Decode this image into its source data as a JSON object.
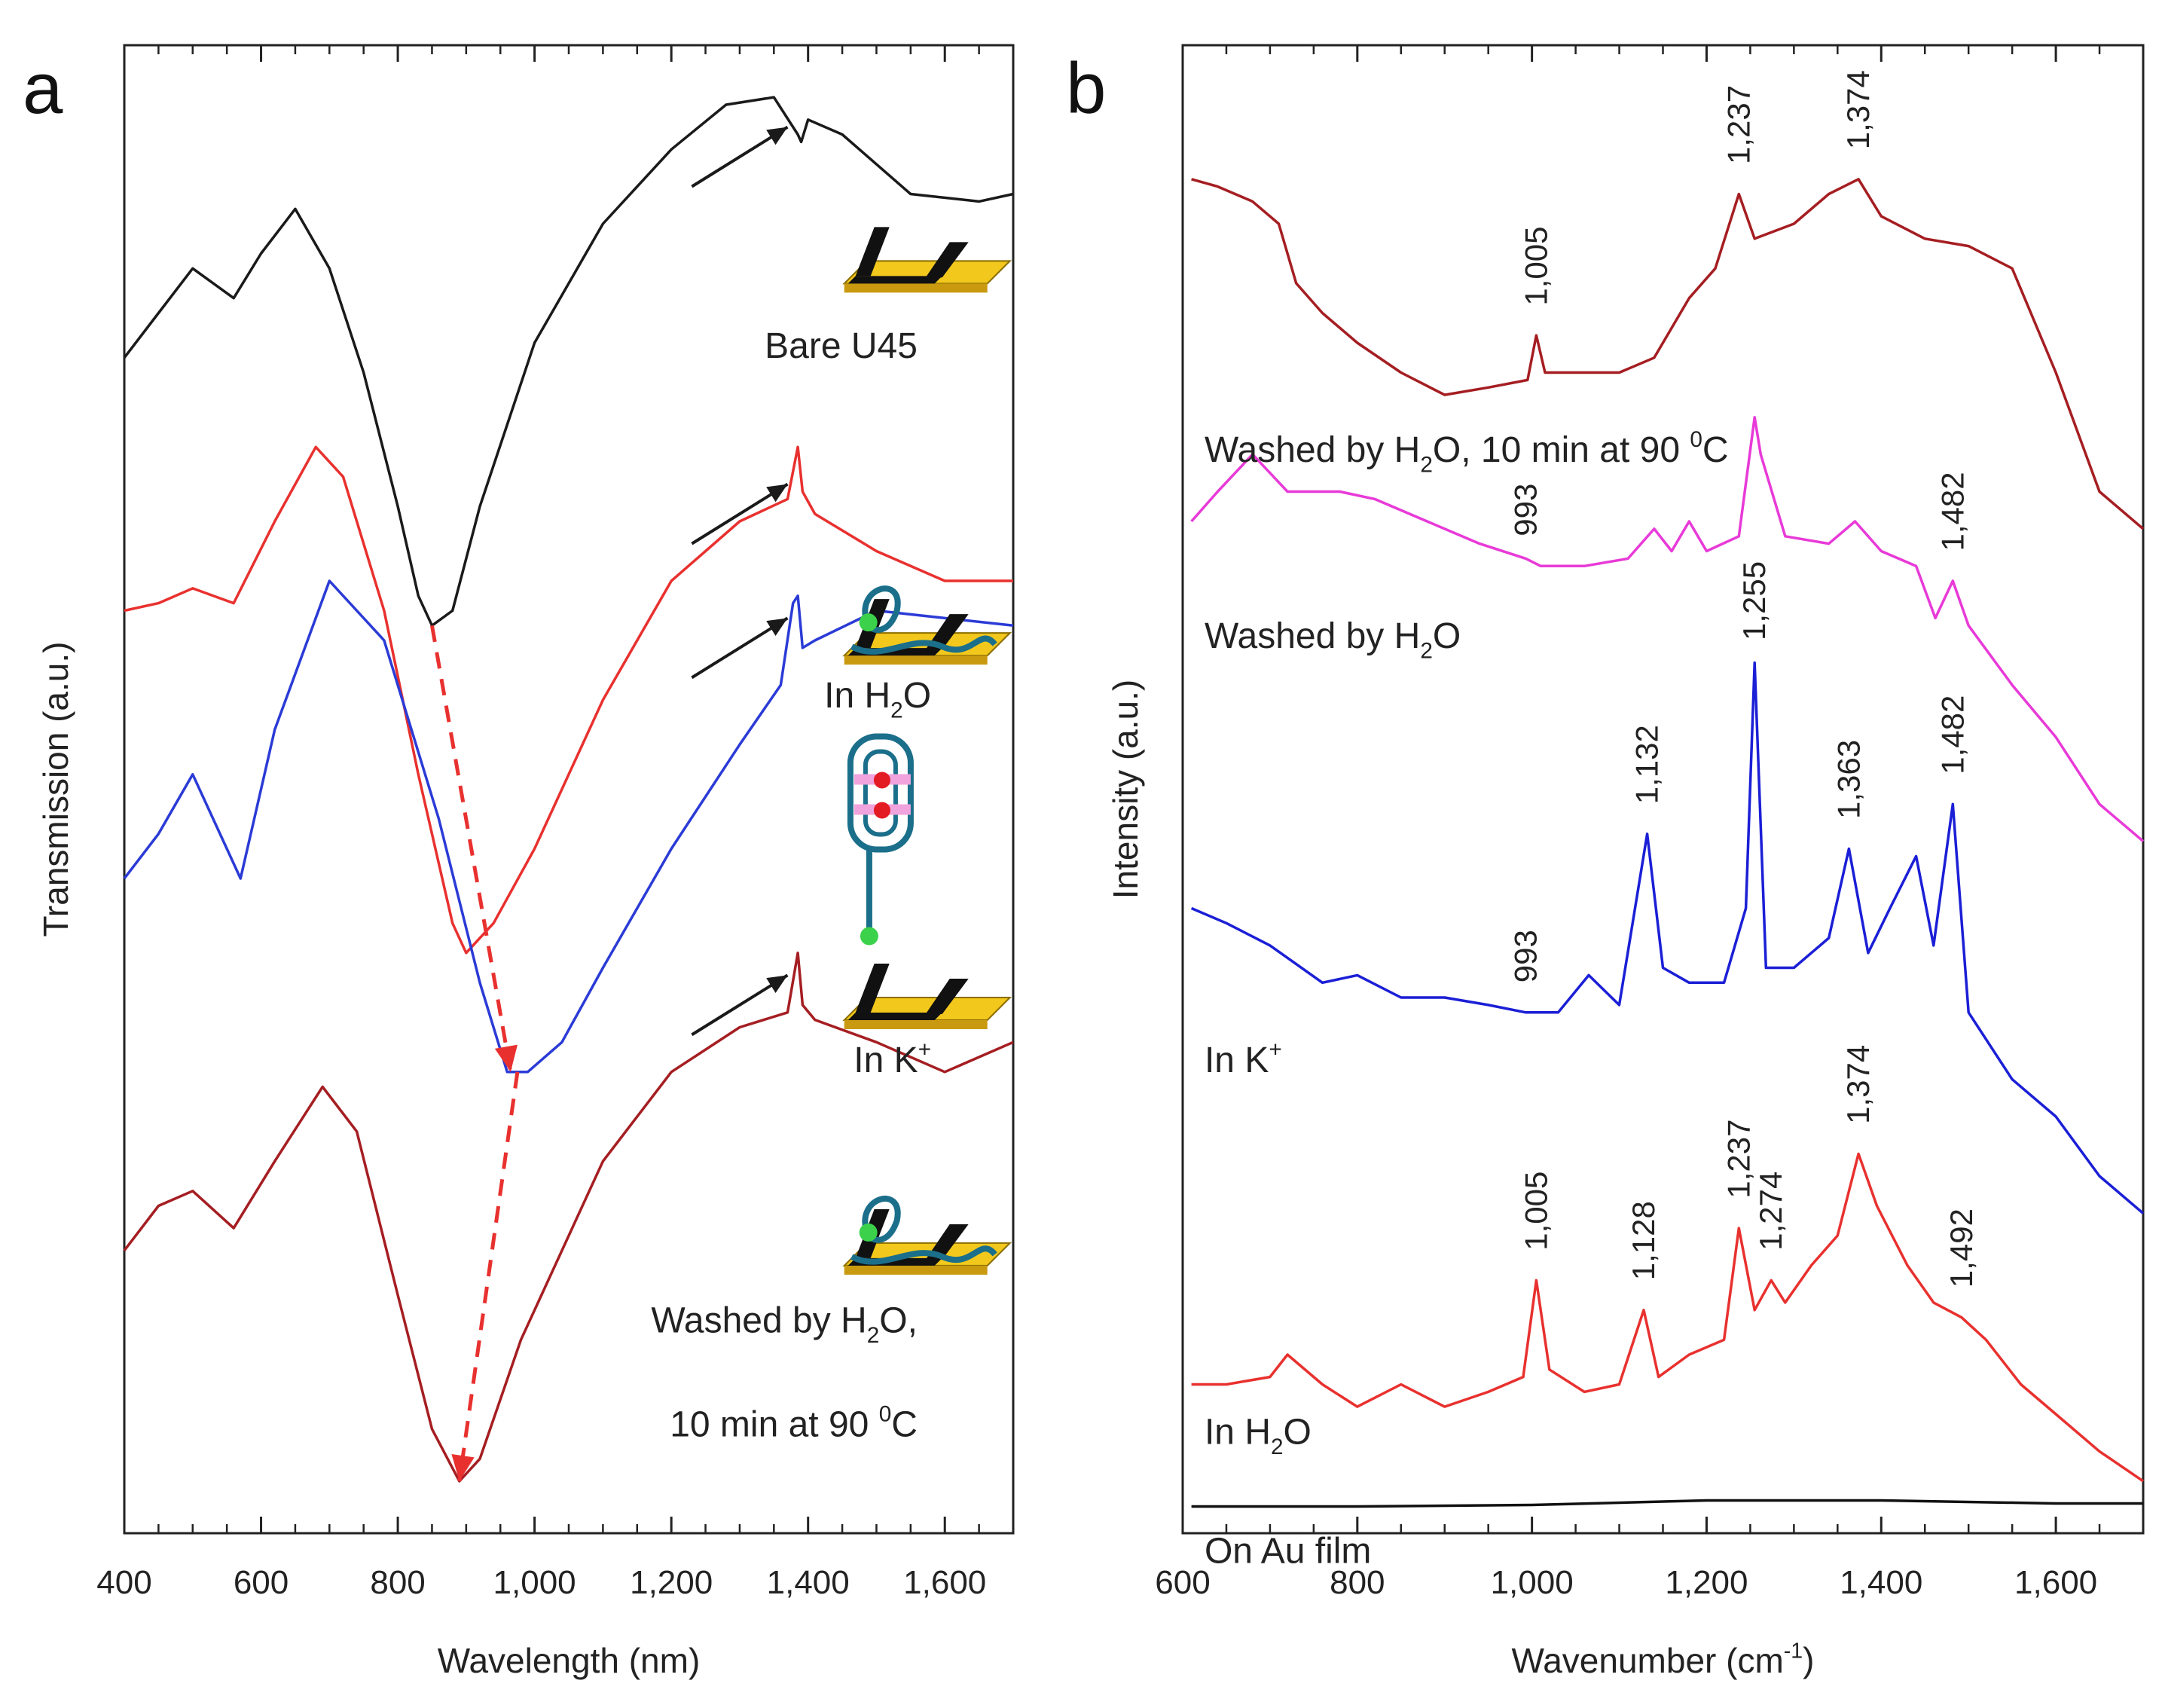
{
  "chart_data": [
    {
      "panel": "a",
      "type": "line",
      "xlabel": "Wavelength (nm)",
      "ylabel": "Transmission (a.u.)",
      "xlim": [
        400,
        1700
      ],
      "xticks": [
        400,
        600,
        800,
        1000,
        1200,
        1400,
        1600
      ],
      "xtick_labels": [
        "400",
        "600",
        "800",
        "1,000",
        "1,200",
        "1,400",
        "1,600"
      ],
      "ylim": [
        0,
        10
      ],
      "grid": false,
      "series": [
        {
          "name": "Bare U45",
          "color": "#1a1a1a",
          "x": [
            400,
            450,
            500,
            560,
            600,
            650,
            700,
            750,
            800,
            830,
            850,
            880,
            920,
            1000,
            1100,
            1200,
            1280,
            1350,
            1385,
            1390,
            1400,
            1450,
            1550,
            1650,
            1700
          ],
          "y": [
            7.9,
            8.2,
            8.5,
            8.3,
            8.6,
            8.9,
            8.5,
            7.8,
            6.9,
            6.3,
            6.1,
            6.2,
            6.9,
            8.0,
            8.8,
            9.3,
            9.6,
            9.65,
            9.4,
            9.35,
            9.5,
            9.4,
            9.0,
            8.95,
            9.0
          ]
        },
        {
          "name": "In H2O",
          "color": "#e8312f",
          "x": [
            400,
            450,
            500,
            560,
            620,
            680,
            720,
            780,
            830,
            880,
            900,
            940,
            1000,
            1100,
            1200,
            1300,
            1370,
            1385,
            1392,
            1410,
            1500,
            1600,
            1700
          ],
          "y": [
            6.2,
            6.25,
            6.35,
            6.25,
            6.8,
            7.3,
            7.1,
            6.2,
            5.1,
            4.1,
            3.9,
            4.1,
            4.6,
            5.6,
            6.4,
            6.8,
            6.95,
            7.3,
            7.0,
            6.85,
            6.6,
            6.4,
            6.4
          ]
        },
        {
          "name": "In K+",
          "color": "#2b3bd6",
          "x": [
            400,
            450,
            500,
            530,
            570,
            620,
            700,
            780,
            860,
            920,
            960,
            990,
            1040,
            1100,
            1200,
            1300,
            1360,
            1378,
            1385,
            1392,
            1410,
            1500,
            1600,
            1700
          ],
          "y": [
            4.4,
            4.7,
            5.1,
            4.8,
            4.4,
            5.4,
            6.4,
            6.0,
            4.8,
            3.7,
            3.1,
            3.1,
            3.3,
            3.8,
            4.6,
            5.3,
            5.7,
            6.25,
            6.3,
            5.95,
            6.0,
            6.2,
            6.15,
            6.1
          ]
        },
        {
          "name": "Washed by H2O, 10 min at 90 °C",
          "color": "#a51e22",
          "x": [
            400,
            450,
            500,
            560,
            620,
            690,
            740,
            800,
            850,
            890,
            920,
            980,
            1100,
            1200,
            1300,
            1370,
            1385,
            1392,
            1410,
            1500,
            1600,
            1700
          ],
          "y": [
            1.9,
            2.2,
            2.3,
            2.05,
            2.5,
            3.0,
            2.7,
            1.6,
            0.7,
            0.35,
            0.5,
            1.3,
            2.5,
            3.1,
            3.4,
            3.5,
            3.9,
            3.55,
            3.45,
            3.3,
            3.1,
            3.3
          ]
        }
      ],
      "annotations": [
        {
          "text": "Bare U45",
          "x": 1560,
          "y": 7.9
        },
        {
          "text": "In H",
          "sub": "2",
          "tail": "O",
          "x": 1580,
          "y": 5.55
        },
        {
          "text": "In K",
          "sup": "+",
          "x": 1580,
          "y": 3.1
        },
        {
          "text": "Washed by H",
          "sub": "2",
          "tail": "O,",
          "x": 1560,
          "y": 1.35
        },
        {
          "text": "10 min at 90 ",
          "sup": "0",
          "tail": "C",
          "x": 1560,
          "y": 0.65
        }
      ],
      "arrows": [
        {
          "from": [
            1230,
            9.05
          ],
          "to": [
            1370,
            9.45
          ],
          "color": "#1a1a1a"
        },
        {
          "from": [
            1230,
            6.65
          ],
          "to": [
            1370,
            7.05
          ],
          "color": "#1a1a1a"
        },
        {
          "from": [
            1230,
            5.75
          ],
          "to": [
            1370,
            6.15
          ],
          "color": "#1a1a1a"
        },
        {
          "from": [
            1230,
            3.35
          ],
          "to": [
            1370,
            3.75
          ],
          "color": "#1a1a1a"
        }
      ],
      "shift_arrows": [
        {
          "from": [
            850,
            6.1
          ],
          "to": [
            965,
            3.1
          ],
          "color": "#e8312f"
        },
        {
          "from": [
            975,
            3.1
          ],
          "to": [
            890,
            0.35
          ],
          "color": "#e8312f"
        }
      ]
    },
    {
      "panel": "b",
      "type": "line",
      "xlabel": "Wavenumber (cm",
      "xlabel_sup": "-1",
      "xlabel_tail": ")",
      "ylabel": "Intensity (a.u.)",
      "xlim": [
        600,
        1700
      ],
      "xticks": [
        600,
        800,
        1000,
        1200,
        1400,
        1600
      ],
      "xtick_labels": [
        "600",
        "800",
        "1,000",
        "1,200",
        "1,400",
        "1,600"
      ],
      "ylim": [
        0,
        10
      ],
      "grid": false,
      "series": [
        {
          "name": "Washed by H2O, 10 min at 90 °C",
          "color": "#a51e22",
          "x": [
            610,
            640,
            680,
            710,
            730,
            760,
            800,
            850,
            900,
            950,
            995,
            1005,
            1015,
            1050,
            1100,
            1140,
            1180,
            1210,
            1237,
            1255,
            1300,
            1340,
            1374,
            1400,
            1450,
            1500,
            1550,
            1600,
            1650,
            1700
          ],
          "y": [
            9.1,
            9.05,
            8.95,
            8.8,
            8.4,
            8.2,
            8.0,
            7.8,
            7.65,
            7.7,
            7.75,
            8.05,
            7.8,
            7.8,
            7.8,
            7.9,
            8.3,
            8.5,
            9.0,
            8.7,
            8.8,
            9.0,
            9.1,
            8.85,
            8.7,
            8.65,
            8.5,
            7.8,
            7.0,
            6.75
          ]
        },
        {
          "name": "Washed by H2O",
          "color": "#e83ad8",
          "x": [
            610,
            640,
            680,
            720,
            780,
            820,
            880,
            940,
            993,
            1010,
            1060,
            1110,
            1140,
            1160,
            1180,
            1200,
            1237,
            1255,
            1262,
            1290,
            1340,
            1370,
            1400,
            1440,
            1462,
            1482,
            1500,
            1550,
            1600,
            1650,
            1700
          ],
          "y": [
            6.8,
            7.0,
            7.25,
            7.0,
            7.0,
            6.95,
            6.8,
            6.65,
            6.55,
            6.5,
            6.5,
            6.55,
            6.75,
            6.6,
            6.8,
            6.6,
            6.7,
            7.5,
            7.25,
            6.7,
            6.65,
            6.8,
            6.6,
            6.5,
            6.15,
            6.4,
            6.1,
            5.7,
            5.35,
            4.9,
            4.65
          ]
        },
        {
          "name": "In K+",
          "color": "#1b1fd6",
          "x": [
            610,
            650,
            700,
            760,
            800,
            850,
            900,
            950,
            993,
            1030,
            1065,
            1100,
            1132,
            1150,
            1180,
            1220,
            1245,
            1255,
            1268,
            1300,
            1340,
            1363,
            1385,
            1410,
            1440,
            1460,
            1482,
            1500,
            1550,
            1600,
            1650,
            1700
          ],
          "y": [
            4.2,
            4.1,
            3.95,
            3.7,
            3.75,
            3.6,
            3.6,
            3.55,
            3.5,
            3.5,
            3.75,
            3.55,
            4.7,
            3.8,
            3.7,
            3.7,
            4.2,
            5.85,
            3.8,
            3.8,
            4.0,
            4.6,
            3.9,
            4.2,
            4.55,
            3.95,
            4.9,
            3.5,
            3.05,
            2.8,
            2.4,
            2.15
          ]
        },
        {
          "name": "In H2O",
          "color": "#e8312f",
          "x": [
            610,
            650,
            700,
            720,
            760,
            800,
            850,
            900,
            950,
            990,
            1005,
            1020,
            1060,
            1100,
            1128,
            1145,
            1180,
            1220,
            1237,
            1255,
            1274,
            1290,
            1320,
            1350,
            1374,
            1395,
            1430,
            1460,
            1492,
            1520,
            1560,
            1600,
            1650,
            1700
          ],
          "y": [
            1.0,
            1.0,
            1.05,
            1.2,
            1.0,
            0.85,
            1.0,
            0.85,
            0.95,
            1.05,
            1.7,
            1.1,
            0.95,
            1.0,
            1.5,
            1.05,
            1.2,
            1.3,
            2.05,
            1.5,
            1.7,
            1.55,
            1.8,
            2.0,
            2.55,
            2.2,
            1.8,
            1.55,
            1.45,
            1.3,
            1.0,
            0.8,
            0.55,
            0.35
          ]
        },
        {
          "name": "On Au film",
          "color": "#111111",
          "x": [
            610,
            800,
            1000,
            1200,
            1400,
            1600,
            1700
          ],
          "y": [
            0.18,
            0.18,
            0.19,
            0.22,
            0.22,
            0.2,
            0.2
          ]
        }
      ],
      "annotations": [
        {
          "text": "Washed by H",
          "sub": "2",
          "tail": "O, 10 min at 90 ",
          "sup2": "0",
          "tail2": "C",
          "x": 625,
          "y": 7.2
        },
        {
          "text": "Washed by H",
          "sub": "2",
          "tail": "O",
          "x": 625,
          "y": 5.95
        },
        {
          "text": "In K",
          "sup": "+",
          "x": 625,
          "y": 3.1
        },
        {
          "text": "In H",
          "sub": "2",
          "tail": "O",
          "x": 625,
          "y": 0.6
        },
        {
          "text": "On Au film",
          "x": 625,
          "y": -0.2
        }
      ],
      "peak_labels": [
        {
          "text": "1,005",
          "x": 1005,
          "y": 8.25
        },
        {
          "text": "1,237",
          "x": 1237,
          "y": 9.2
        },
        {
          "text": "1,374",
          "x": 1374,
          "y": 9.3
        },
        {
          "text": "993",
          "x": 993,
          "y": 6.7
        },
        {
          "text": "1,482",
          "x": 1482,
          "y": 6.6
        },
        {
          "text": "1,255",
          "x": 1255,
          "y": 6.0
        },
        {
          "text": "1,132",
          "x": 1132,
          "y": 4.9
        },
        {
          "text": "1,363",
          "x": 1363,
          "y": 4.8
        },
        {
          "text": "1,482",
          "x": 1482,
          "y": 5.1
        },
        {
          "text": "993",
          "x": 993,
          "y": 3.7
        },
        {
          "text": "1,374",
          "x": 1374,
          "y": 2.75
        },
        {
          "text": "1,005",
          "x": 1005,
          "y": 1.9
        },
        {
          "text": "1,128",
          "x": 1128,
          "y": 1.7
        },
        {
          "text": "1,237",
          "x": 1237,
          "y": 2.25
        },
        {
          "text": "1,274",
          "x": 1274,
          "y": 1.9
        },
        {
          "text": "1,492",
          "x": 1492,
          "y": 1.65
        }
      ]
    }
  ],
  "panel_labels": [
    "a",
    "b"
  ]
}
